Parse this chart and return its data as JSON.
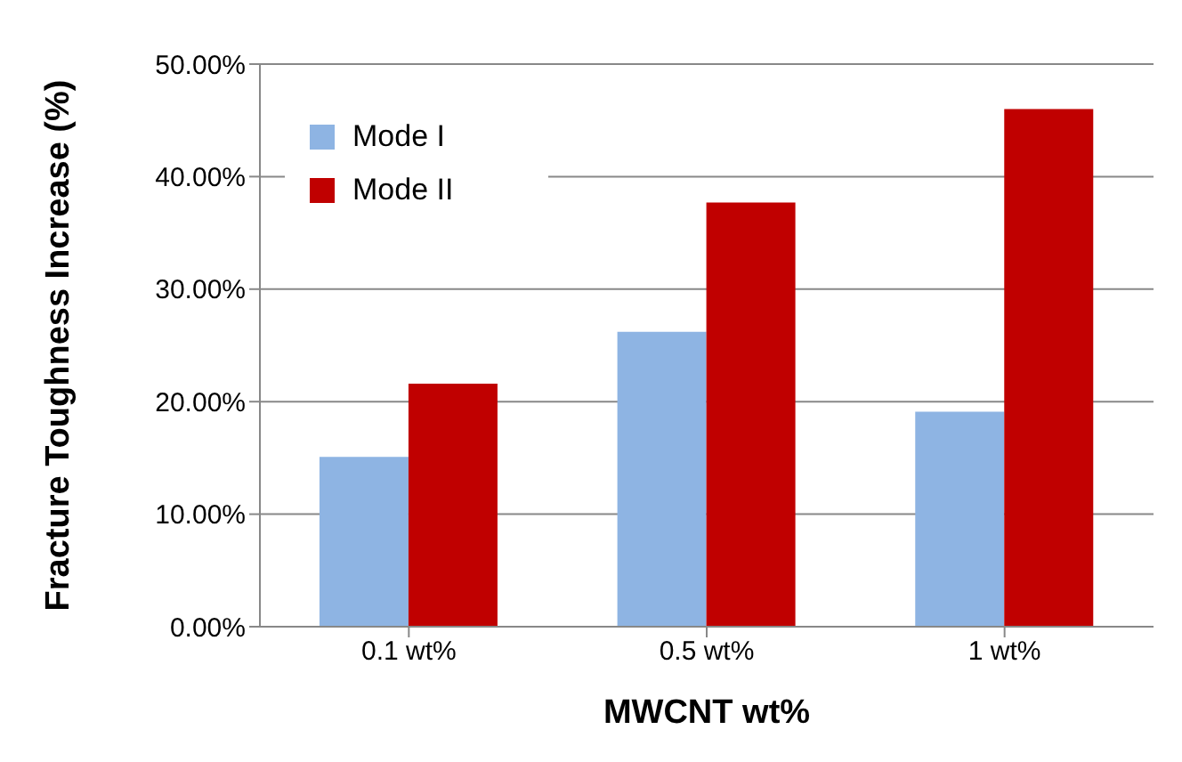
{
  "chart_data": {
    "type": "bar",
    "xlabel": "MWCNT wt%",
    "ylabel": "Fracture Toughness Increase (%)",
    "categories": [
      "0.1 wt%",
      "0.5 wt%",
      "1 wt%"
    ],
    "series": [
      {
        "name": "Mode I",
        "color": "#8eb4e3",
        "values": [
          15.1,
          26.2,
          19.1
        ]
      },
      {
        "name": "Mode II",
        "color": "#c00000",
        "values": [
          21.6,
          37.7,
          46.0
        ]
      }
    ],
    "ylim": [
      0,
      50
    ],
    "yticks": [
      {
        "value": 0,
        "label": "0.00%"
      },
      {
        "value": 10,
        "label": "10.00%"
      },
      {
        "value": 20,
        "label": "20.00%"
      },
      {
        "value": 30,
        "label": "30.00%"
      },
      {
        "value": 40,
        "label": "40.00%"
      },
      {
        "value": 50,
        "label": "50.00%"
      }
    ],
    "grid": "y",
    "legend": "top left"
  }
}
